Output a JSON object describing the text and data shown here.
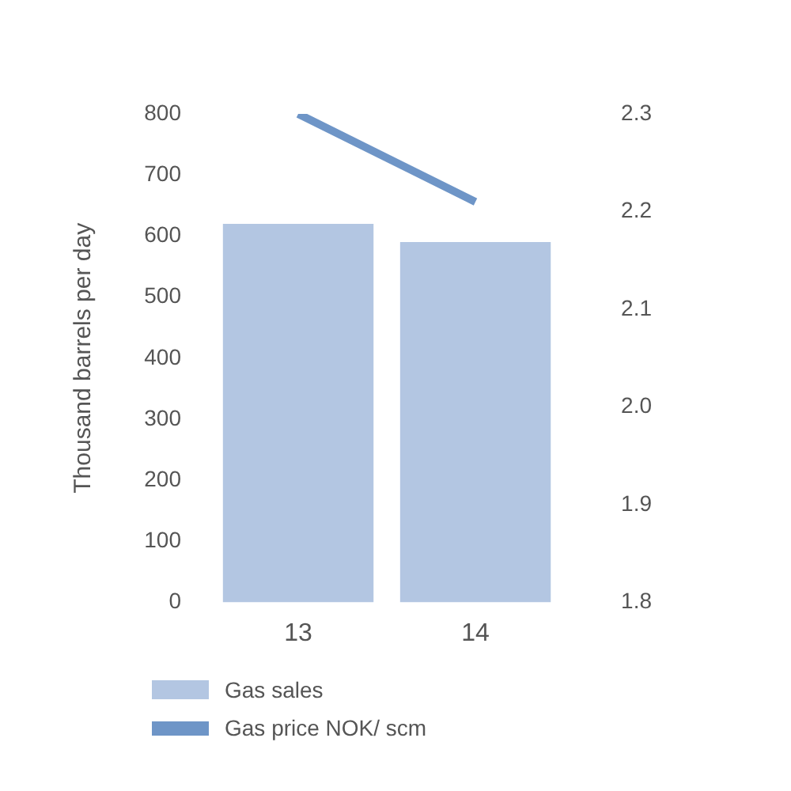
{
  "chart_data": {
    "type": "bar",
    "ylabel": "Thousand barrels per day",
    "categories": [
      "13",
      "14"
    ],
    "series": [
      {
        "name": "Gas sales",
        "color": "#b3c6e2",
        "values": [
          620,
          590
        ]
      },
      {
        "name": "Gas price NOK/ scm",
        "type": "line",
        "axis": "y2",
        "color": "#6e95c7",
        "values": [
          2.3,
          2.21
        ]
      }
    ],
    "ylim": [
      0,
      800
    ],
    "yticks": [
      0,
      100,
      200,
      300,
      400,
      500,
      600,
      700,
      800
    ],
    "y2lim": [
      1.8,
      2.3
    ],
    "y2ticks": [
      1.8,
      1.9,
      {
        "value": 2,
        "label": "2.0"
      },
      2.1,
      2.2,
      2.3
    ],
    "grid": false,
    "legend": "bottom",
    "marker": "none"
  }
}
